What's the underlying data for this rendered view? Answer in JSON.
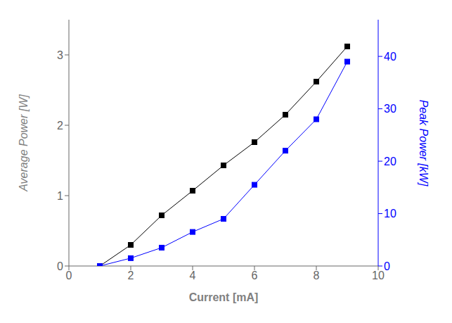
{
  "chart_data": {
    "type": "line",
    "xlabel": "Current [mA]",
    "ylabel": "Average Power [W]",
    "y2label": "Peak Power [kW]",
    "x": [
      1,
      2,
      3,
      4,
      5,
      6,
      7,
      8,
      9
    ],
    "xlim": [
      0,
      10
    ],
    "xticks": [
      0,
      2,
      4,
      6,
      8,
      10
    ],
    "ylim": [
      0,
      3.5
    ],
    "yticks": [
      0,
      1,
      2,
      3
    ],
    "y2lim": [
      0,
      47
    ],
    "y2ticks": [
      0,
      10,
      20,
      30,
      40
    ],
    "grid": false,
    "series": [
      {
        "color": "#000000",
        "marker": "square",
        "values": [
          0.0,
          0.3,
          0.72,
          1.07,
          1.43,
          1.76,
          2.15,
          2.62,
          3.12
        ]
      },
      {
        "color": "#0000ff",
        "marker": "square",
        "axis": "y2",
        "values": [
          0.0,
          1.5,
          3.5,
          6.5,
          9.0,
          15.5,
          22.0,
          28.0,
          39.0
        ]
      }
    ]
  }
}
